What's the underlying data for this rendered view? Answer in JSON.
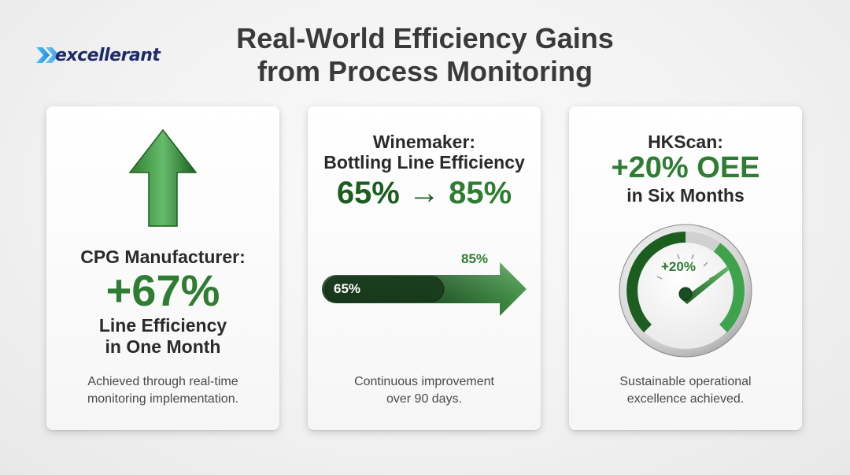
{
  "logo": {
    "text": "excellerant",
    "icon": "chevron-arrows-icon"
  },
  "title": {
    "line1": "Real-World Efficiency Gains",
    "line2": "from Process Monitoring"
  },
  "cards": [
    {
      "heading": "CPG Manufacturer:",
      "value": "+67%",
      "subtitle_line1": "Line Efficiency",
      "subtitle_line2": "in One Month",
      "desc_line1": "Achieved through real-time",
      "desc_line2": "monitoring implementation.",
      "icon": "up-arrow-icon"
    },
    {
      "heading_line1": "Winemaker:",
      "heading_line2": "Bottling Line Efficiency",
      "value_from": "65%",
      "value_arrow": "→",
      "value_to": "85%",
      "bar_start_label": "65%",
      "bar_end_label": "85%",
      "bar_start_value": 65,
      "bar_end_value": 85,
      "desc_line1": "Continuous improvement",
      "desc_line2": "over 90 days.",
      "icon": "progress-arrow-icon"
    },
    {
      "heading": "HKScan:",
      "value": "+20% OEE",
      "subtitle": "in Six Months",
      "gauge_label": "+20%",
      "desc_line1": "Sustainable operational",
      "desc_line2": "excellence achieved.",
      "icon": "gauge-icon"
    }
  ],
  "colors": {
    "green_dark": "#1b5e20",
    "green": "#2e7d32",
    "green_light": "#43a047",
    "navy": "#1d2b6b",
    "cyan": "#29b6f6"
  }
}
